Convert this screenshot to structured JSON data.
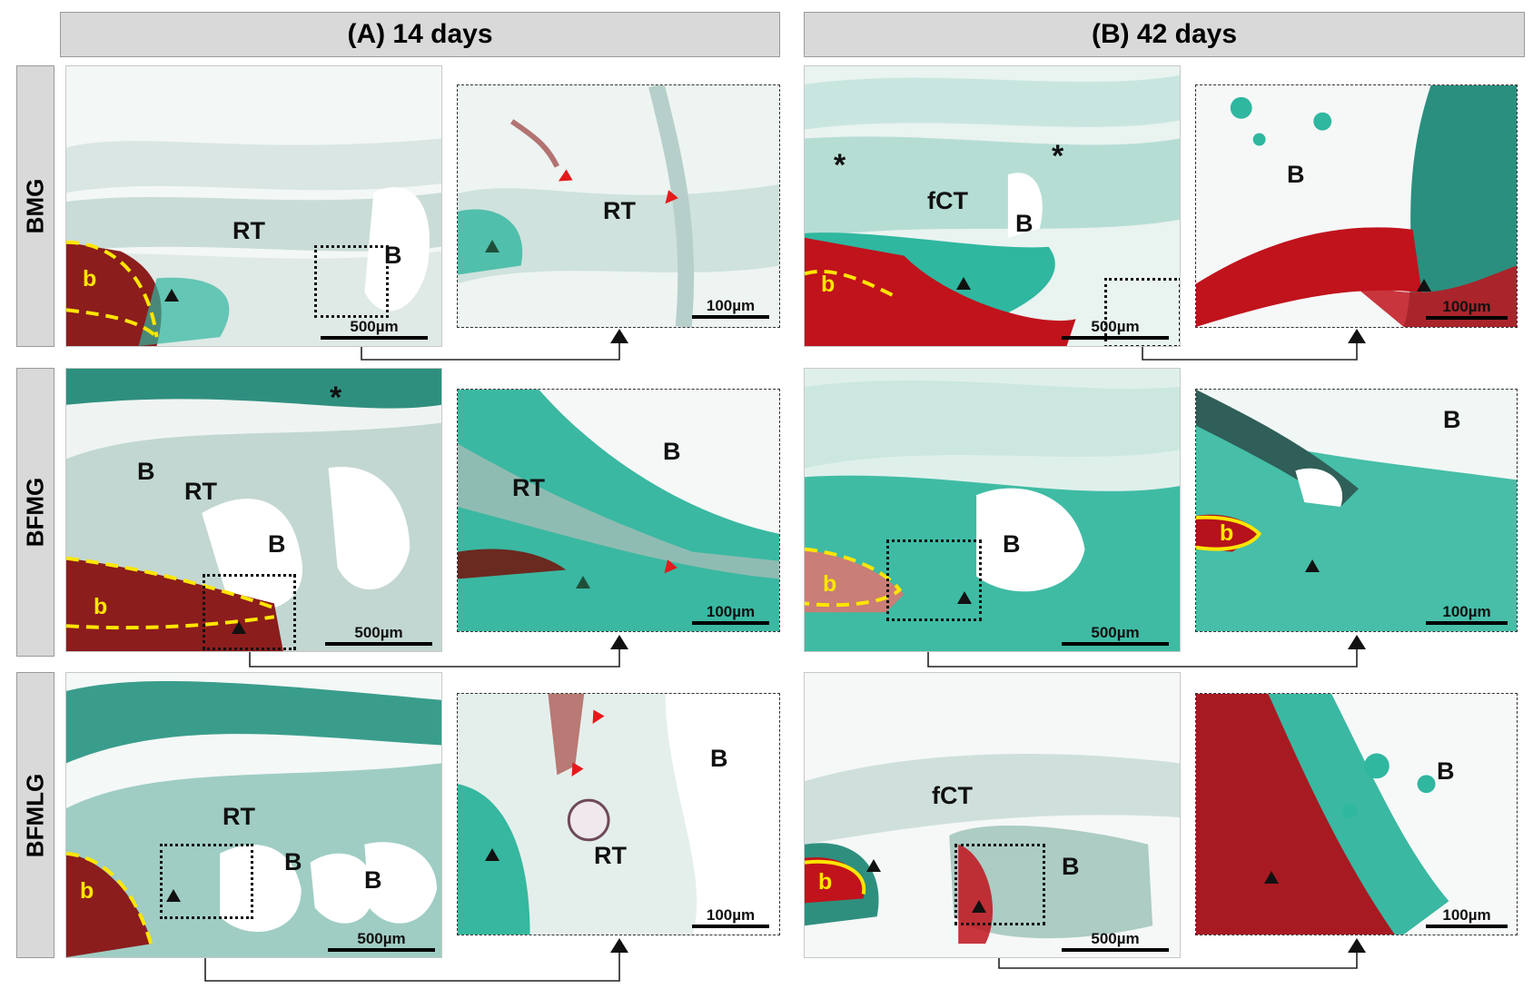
{
  "columns": [
    {
      "label": "(A) 14 days"
    },
    {
      "label": "(B) 42 days"
    }
  ],
  "rows": [
    {
      "label": "BMG"
    },
    {
      "label": "BFMG"
    },
    {
      "label": "BFMLG"
    }
  ],
  "scale_low": "500µm",
  "scale_high": "100µm",
  "labels": {
    "rt": "RT",
    "b_space": "B",
    "b_bone": "b",
    "fct": "fCT",
    "star": "*"
  },
  "colors": {
    "fast_green": "#2fb7a0",
    "red_bone": "#b5121b",
    "pale_tissue": "#eef5f3",
    "yellow_outline": "#ffe600",
    "red_arrow": "#e41a1c"
  }
}
